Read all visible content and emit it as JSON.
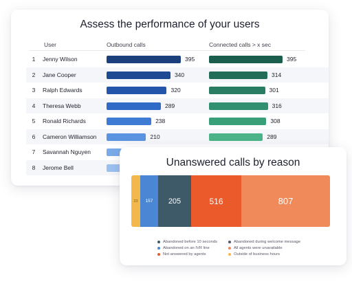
{
  "performance": {
    "title": "Assess the performance of your users",
    "headers": {
      "user": "User",
      "outbound": "Outbound calls",
      "connected": "Connected calls > x sec"
    },
    "rows": [
      {
        "rank": "1",
        "name": "Jenny Wilson",
        "outbound": 395,
        "connected": 395,
        "outbound_label": "395",
        "connected_label": "395"
      },
      {
        "rank": "2",
        "name": "Jane Cooper",
        "outbound": 340,
        "connected": 314,
        "outbound_label": "340",
        "connected_label": "314"
      },
      {
        "rank": "3",
        "name": "Ralph Edwards",
        "outbound": 320,
        "connected": 301,
        "outbound_label": "320",
        "connected_label": "301"
      },
      {
        "rank": "4",
        "name": "Theresa Webb",
        "outbound": 289,
        "connected": 316,
        "outbound_label": "289",
        "connected_label": "316"
      },
      {
        "rank": "5",
        "name": "Ronald Richards",
        "outbound": 238,
        "connected": 308,
        "outbound_label": "238",
        "connected_label": "308"
      },
      {
        "rank": "6",
        "name": "Cameron Williamson",
        "outbound": 210,
        "connected": 289,
        "outbound_label": "210",
        "connected_label": "289"
      },
      {
        "rank": "7",
        "name": "Savannah Nguyen",
        "outbound": null,
        "connected": null,
        "outbound_label": "",
        "connected_label": ""
      },
      {
        "rank": "8",
        "name": "Jerome Bell",
        "outbound": null,
        "connected": null,
        "outbound_label": "",
        "connected_label": ""
      }
    ],
    "colors": {
      "outbound": [
        "#1c3f7e",
        "#1d4a93",
        "#2356aa",
        "#2f6ac6",
        "#3d7bd4",
        "#5b93e0",
        "#7aaae8",
        "#9bc1ef"
      ],
      "connected": [
        "#1b5e4d",
        "#226d57",
        "#2a7d63",
        "#31906f",
        "#389f79",
        "#4cb388",
        "#6ec49f",
        "#8fd3b5"
      ]
    }
  },
  "unanswered": {
    "title": "Unanswered calls by reason",
    "segments": [
      {
        "value": 23,
        "label": "23",
        "color": "#f2b84b",
        "text_color": "#7a5a1a"
      },
      {
        "value": 157,
        "label": "157",
        "color": "#4a86d4",
        "text_color": "#ffffff"
      },
      {
        "value": 205,
        "label": "205",
        "color": "#3e5a68",
        "text_color": "#ffffff"
      },
      {
        "value": 516,
        "label": "516",
        "color": "#ea5a2b",
        "text_color": "#ffffff"
      },
      {
        "value": 807,
        "label": "807",
        "color": "#f08a5a",
        "text_color": "#ffffff"
      }
    ],
    "legend_left": [
      {
        "label": "Abandoned before 10 seconds",
        "color": "#3e5a68"
      },
      {
        "label": "Abandoned on an IVR line",
        "color": "#4a86d4"
      },
      {
        "label": "Not answered by agents",
        "color": "#ea5a2b"
      }
    ],
    "legend_right": [
      {
        "label": "Abandoned during welcome message",
        "color": "#555866"
      },
      {
        "label": "All agents were unavailable",
        "color": "#f08a5a"
      },
      {
        "label": "Outside of business hours",
        "color": "#f2b84b"
      }
    ]
  }
}
